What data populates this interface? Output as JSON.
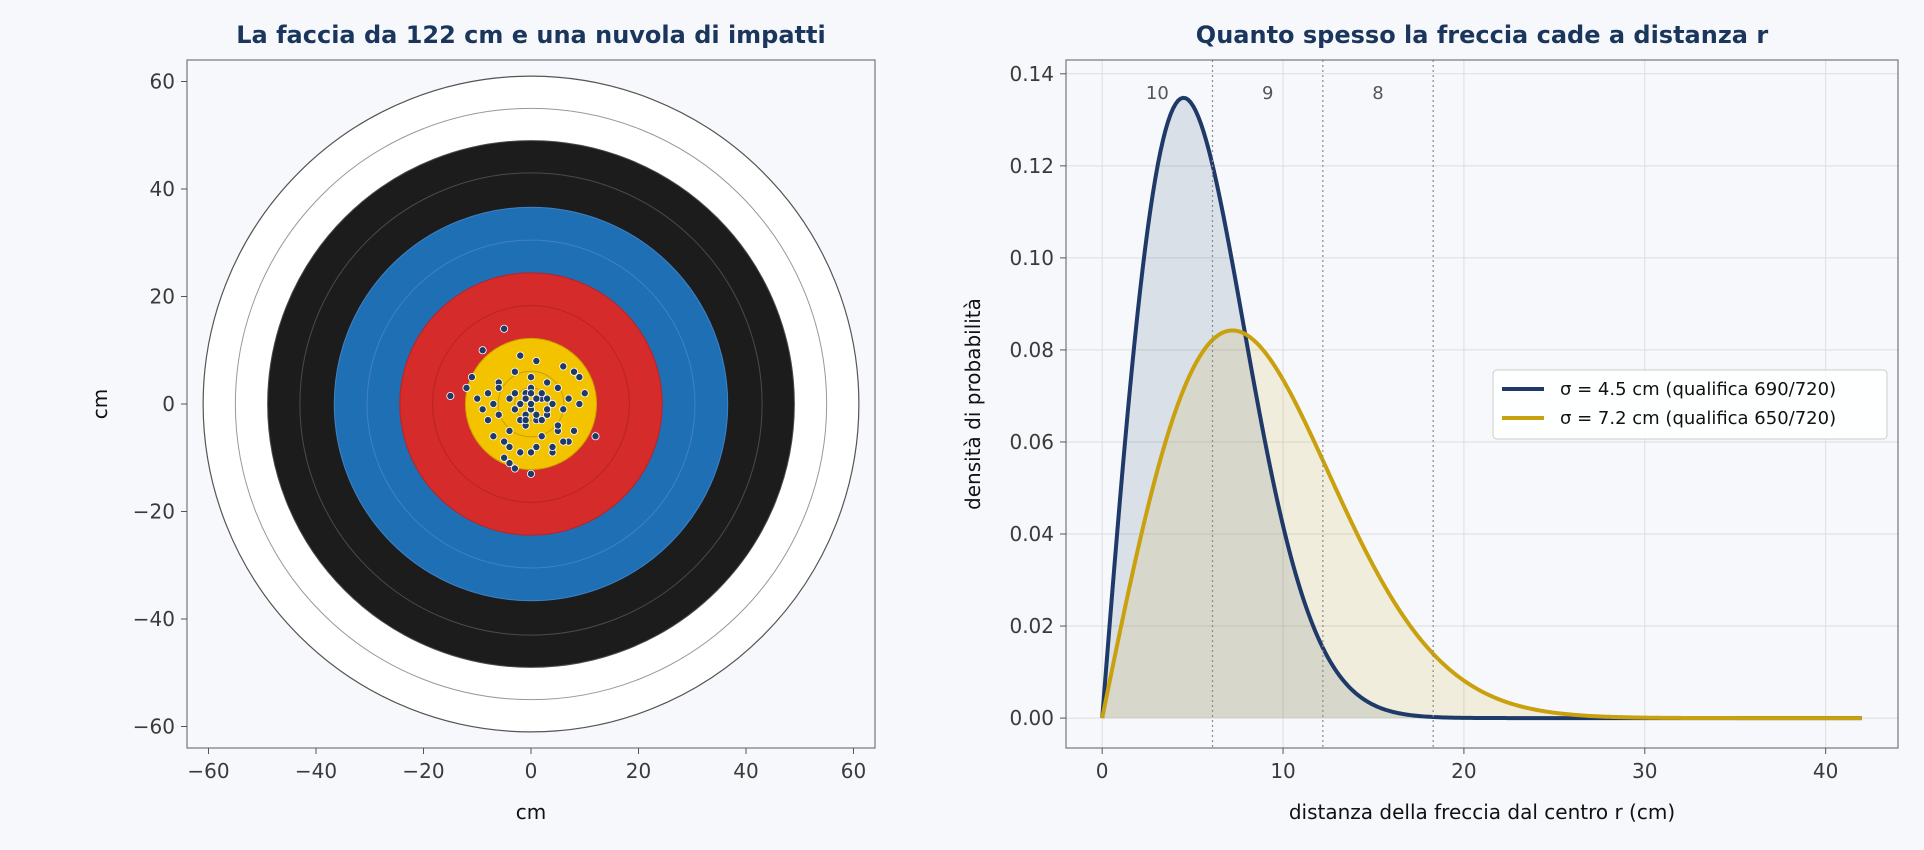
{
  "colors": {
    "page_bg": "#f6f8fb",
    "title": "#1b365d",
    "ring_white": "#ffffff",
    "ring_black": "#1c1c1c",
    "ring_blue": "#1f6fb5",
    "ring_red": "#d52b2b",
    "ring_gold": "#f3c300",
    "impact": "#1f3a68",
    "series_a": "#1f3a68",
    "series_b": "#c9a00e"
  },
  "chart_data": [
    {
      "type": "scatter",
      "title": "La faccia da 122 cm e una nuvola di impatti",
      "xlabel": "cm",
      "ylabel": "cm",
      "xlim": [
        -64,
        64
      ],
      "ylim": [
        -64,
        64
      ],
      "xticks": [
        "−60",
        "−40",
        "−20",
        "0",
        "20",
        "40",
        "60"
      ],
      "yticks": [
        "−60",
        "−40",
        "−20",
        "0",
        "20",
        "40",
        "60"
      ],
      "tick_values": [
        -60,
        -40,
        -20,
        0,
        20,
        40,
        60
      ],
      "grid": false,
      "target_rings": {
        "radii_cm": [
          61,
          55,
          49,
          43,
          36.6,
          30.5,
          24.4,
          18.3,
          12.2,
          6.1,
          3.05
        ],
        "fill_by_ring": [
          "white",
          "white",
          "black",
          "black",
          "blue",
          "blue",
          "red",
          "red",
          "gold",
          "gold",
          "gold"
        ]
      },
      "points": {
        "x": [
          -5,
          -2,
          1,
          6,
          9,
          -9,
          -11,
          -12,
          -8,
          -6,
          -3,
          0,
          3,
          5,
          8,
          10,
          -15,
          -10,
          -7,
          -4,
          -1,
          2,
          4,
          7,
          -9,
          -6,
          -3,
          0,
          3,
          6,
          9,
          -7,
          -4,
          -1,
          2,
          5,
          8,
          12,
          -5,
          -2,
          1,
          4,
          7,
          -3,
          0,
          -4,
          -2,
          -1,
          0,
          1,
          2,
          3,
          -1,
          0,
          1,
          -2,
          2,
          -3,
          3,
          0,
          -1,
          1,
          -5,
          5,
          -6,
          6,
          -8,
          4,
          -4,
          0
        ],
        "y": [
          14,
          9,
          8,
          7,
          5,
          10,
          5,
          3,
          2,
          4,
          6,
          5,
          4,
          3,
          6,
          2,
          1.5,
          1,
          0,
          1,
          2,
          1,
          0,
          1,
          -1,
          -2,
          -1,
          -1,
          -2,
          -1,
          0,
          -6,
          -5,
          -4,
          -6,
          -5,
          -5,
          -6,
          -10,
          -9,
          -8,
          -9,
          -7,
          -12,
          -13,
          -11,
          -3,
          1,
          3,
          -3,
          2,
          -1,
          -2,
          0,
          1,
          0,
          -3,
          2,
          1,
          2,
          -3,
          -2,
          -7,
          -4,
          3,
          -7,
          -3,
          -8,
          -8,
          -9
        ]
      }
    },
    {
      "type": "line",
      "title": "Quanto spesso la freccia cade a distanza r",
      "xlabel": "distanza della freccia dal centro  r (cm)",
      "ylabel": "densità di probabilità",
      "xlim": [
        -2,
        44
      ],
      "ylim": [
        -0.0065,
        0.143
      ],
      "xticks": [
        0,
        10,
        20,
        30,
        40
      ],
      "yticks": [
        "0.00",
        "0.02",
        "0.04",
        "0.06",
        "0.08",
        "0.10",
        "0.12",
        "0.14"
      ],
      "ytick_values": [
        0,
        0.02,
        0.04,
        0.06,
        0.08,
        0.1,
        0.12,
        0.14
      ],
      "grid": true,
      "r_max": 42,
      "ring_boundaries": [
        6.1,
        12.2,
        18.3
      ],
      "zone_labels": [
        {
          "text": "10",
          "x": 3.05
        },
        {
          "text": "9",
          "x": 9.15
        },
        {
          "text": "8",
          "x": 15.25
        }
      ],
      "legend_position": "center-right",
      "series": [
        {
          "name": "σ = 4.5 cm  (qualifica 690/720)",
          "sigma": 4.5,
          "color": "#1f3a68"
        },
        {
          "name": "σ = 7.2 cm  (qualifica 650/720)",
          "sigma": 7.2,
          "color": "#c9a00e"
        }
      ]
    }
  ]
}
